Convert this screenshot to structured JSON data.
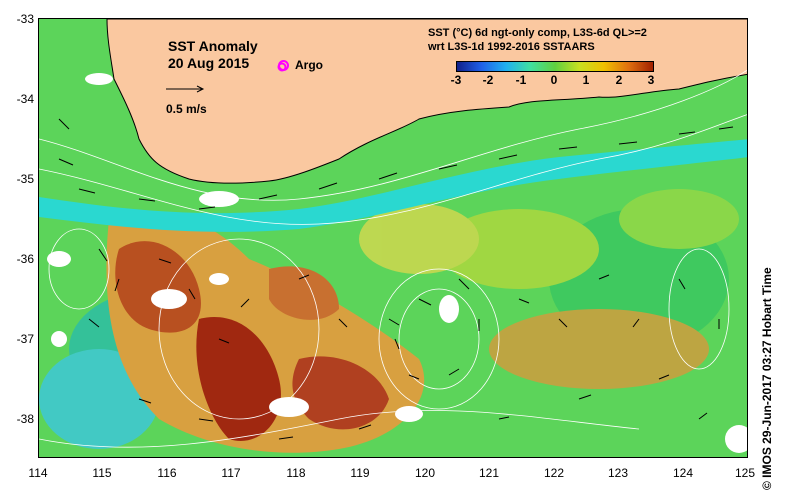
{
  "title": {
    "line1": "SST Anomaly",
    "line2": "20 Aug 2015"
  },
  "argo_label": "Argo",
  "scale_label": "0.5 m/s",
  "colorbar": {
    "title_line1": "SST (°C) 6d ngt-only comp, L3S-6d QL>=2",
    "title_line2": "wrt L3S-1d 1992-2016 SSTAARS",
    "ticks": [
      "-3",
      "-2",
      "-1",
      "0",
      "1",
      "2",
      "3"
    ],
    "colors": [
      "#10208a",
      "#2060e8",
      "#20b0f0",
      "#40e0a0",
      "#60d040",
      "#c8e020",
      "#f0c000",
      "#e07010",
      "#a02000"
    ]
  },
  "y_ticks": [
    "-33",
    "-34",
    "-35",
    "-36",
    "-37",
    "-38"
  ],
  "x_ticks": [
    "114",
    "115",
    "116",
    "117",
    "118",
    "119",
    "120",
    "121",
    "122",
    "123",
    "124",
    "125"
  ],
  "credit": "© IMOS 29-Jun-2017 03:27 Hobart Time",
  "colors": {
    "land": "#fac8a0",
    "ocean_base": "#5cd45a",
    "cyan": "#2ad8d0",
    "warm": "#d8a040",
    "hot": "#a02810"
  }
}
